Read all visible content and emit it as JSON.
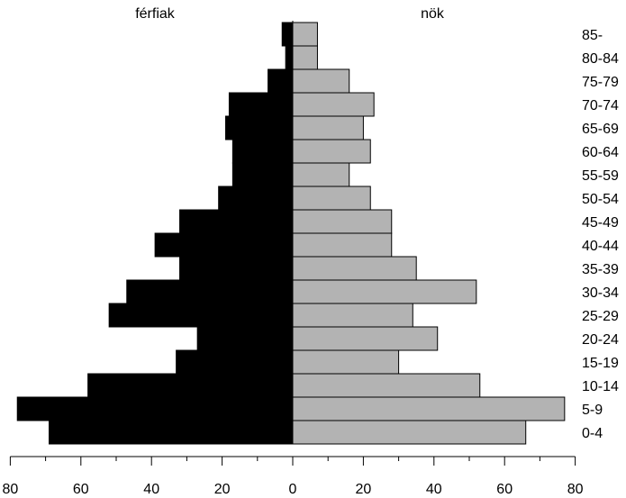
{
  "chart_data": {
    "type": "bar",
    "orientation": "horizontal",
    "layout": "population-pyramid",
    "categories": [
      "0-4",
      "5-9",
      "10-14",
      "15-19",
      "20-24",
      "25-29",
      "30-34",
      "35-39",
      "40-44",
      "45-49",
      "50-54",
      "55-59",
      "60-64",
      "65-69",
      "70-74",
      "75-79",
      "80-84",
      "85-"
    ],
    "series": [
      {
        "name": "férfiak",
        "side": "left",
        "color": "#000000",
        "values": [
          69,
          78,
          58,
          33,
          27,
          52,
          47,
          32,
          39,
          32,
          21,
          17,
          17,
          19,
          18,
          7,
          2,
          3
        ]
      },
      {
        "name": "nök",
        "side": "right",
        "color": "#b3b3b3",
        "values": [
          66,
          77,
          53,
          30,
          41,
          34,
          52,
          35,
          28,
          28,
          22,
          16,
          22,
          20,
          23,
          16,
          7,
          7
        ]
      }
    ],
    "x_ticks": [
      "80",
      "60",
      "40",
      "20",
      "0",
      "20",
      "40",
      "60",
      "80"
    ],
    "xlim": [
      -80,
      80
    ],
    "minor_ticks_every": 10,
    "grid": false,
    "legend": "none"
  }
}
